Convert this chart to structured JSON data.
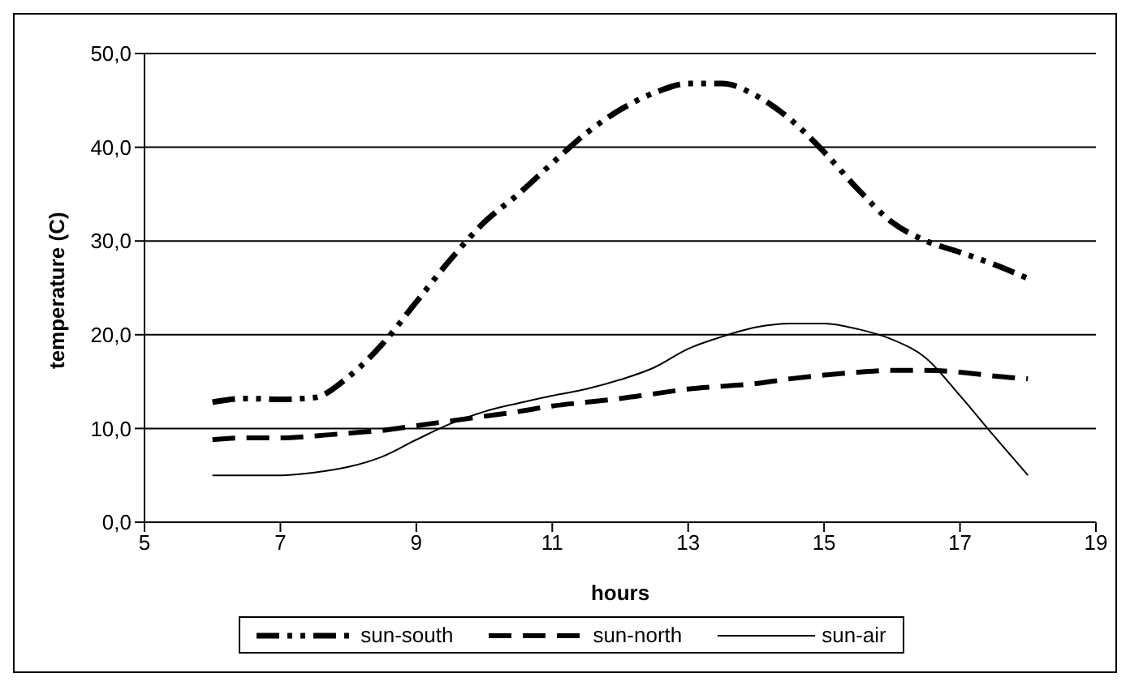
{
  "chart_data": {
    "type": "line",
    "xlabel": "hours",
    "ylabel": "temperature (C)",
    "x": [
      6,
      6.5,
      7,
      7.5,
      8,
      8.5,
      9,
      9.5,
      10,
      10.5,
      11,
      11.5,
      12,
      12.5,
      13,
      13.5,
      14,
      14.5,
      15,
      15.5,
      16,
      16.5,
      17,
      17.5,
      18
    ],
    "series": [
      {
        "name": "sun-south",
        "color": "#000000",
        "line_style": "dashdot",
        "values": [
          12.8,
          13.2,
          13.1,
          13.3,
          15.5,
          19,
          23.5,
          28,
          32,
          35,
          38.3,
          41.5,
          44,
          45.8,
          46.8,
          46.8,
          45.5,
          43,
          39.5,
          35.5,
          32,
          30,
          28.8,
          27.5,
          26
        ]
      },
      {
        "name": "sun-north",
        "color": "#000000",
        "line_style": "dashed",
        "values": [
          8.8,
          9,
          9,
          9.2,
          9.5,
          9.8,
          10.3,
          10.8,
          11.3,
          11.8,
          12.4,
          12.8,
          13.2,
          13.7,
          14.2,
          14.5,
          14.8,
          15.3,
          15.7,
          16,
          16.2,
          16.2,
          16,
          15.6,
          15.3
        ]
      },
      {
        "name": "sun-air",
        "color": "#000000",
        "line_style": "solid",
        "values": [
          5,
          5,
          5,
          5.3,
          5.9,
          7,
          8.8,
          10.5,
          11.8,
          12.7,
          13.5,
          14.2,
          15.2,
          16.5,
          18.5,
          19.8,
          20.8,
          21.2,
          21.2,
          20.6,
          19.5,
          17.5,
          13.5,
          9.2,
          5
        ]
      }
    ],
    "xlim": [
      5,
      19
    ],
    "xticks": [
      5,
      7,
      9,
      11,
      13,
      15,
      17,
      19
    ],
    "ylim": [
      0,
      50
    ],
    "yticks": [
      {
        "value": 0,
        "label": "0,0"
      },
      {
        "value": 10,
        "label": "10,0"
      },
      {
        "value": 20,
        "label": "20,0"
      },
      {
        "value": 30,
        "label": "30,0"
      },
      {
        "value": 40,
        "label": "40,0"
      },
      {
        "value": 50,
        "label": "50,0"
      }
    ],
    "grid": "y",
    "legend": "bottom",
    "marker": "none"
  }
}
